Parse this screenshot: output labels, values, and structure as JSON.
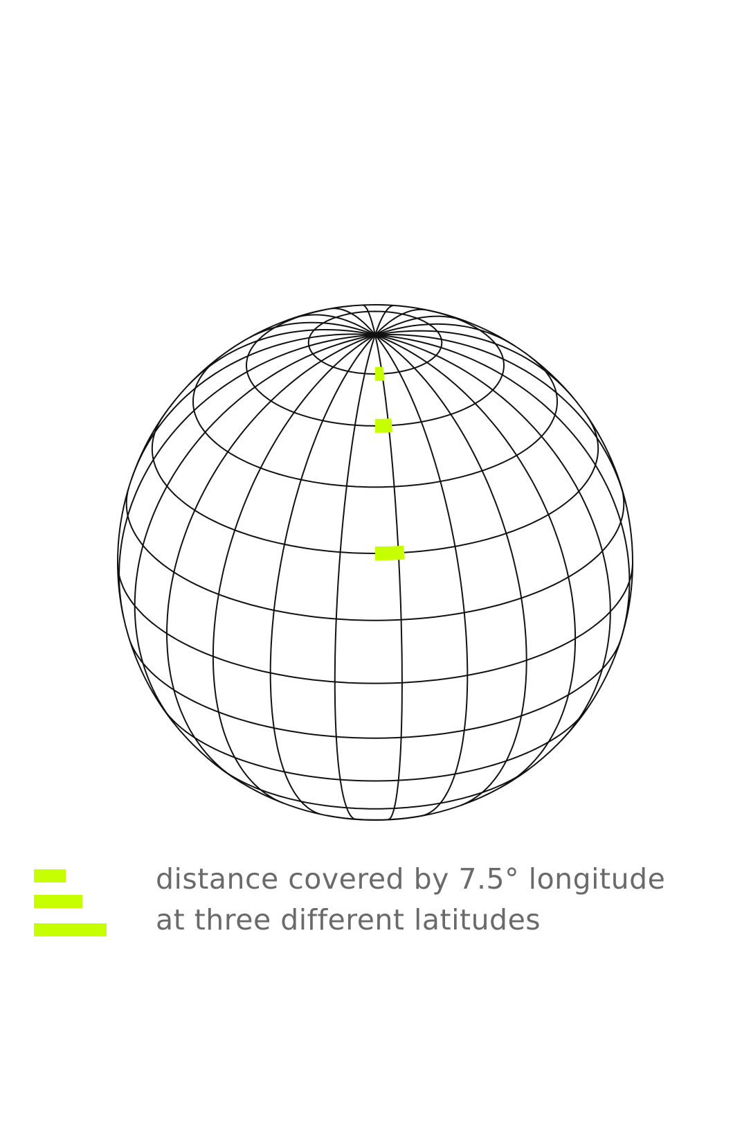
{
  "colors": {
    "highlight": "#c6ff00",
    "grid_line": "#111111",
    "caption_text": "#6a6a6a",
    "background": "#ffffff"
  },
  "globe": {
    "graticule_step_degrees": 15,
    "meridian_count": 24,
    "highlighted_longitude_span_degrees": 7.5,
    "highlight_count": 3
  },
  "legend": {
    "line1": "distance covered by 7.5° longitude",
    "line2": "at three different latitudes",
    "swatch_count": 3
  }
}
